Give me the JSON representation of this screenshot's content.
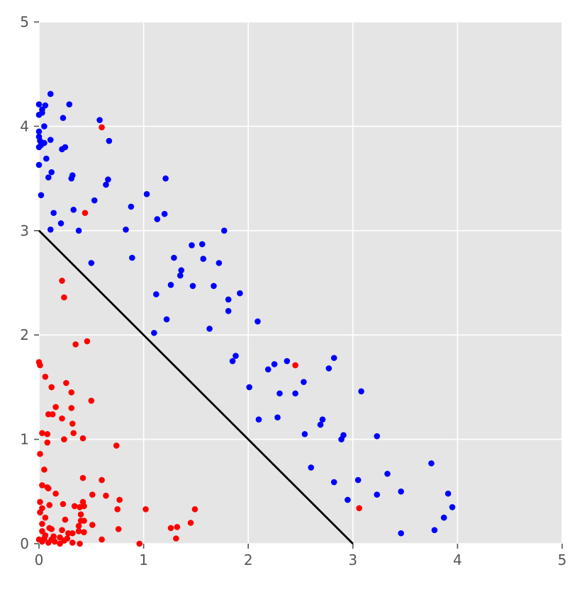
{
  "chart_data": {
    "type": "scatter",
    "title": "",
    "xlabel": "",
    "ylabel": "",
    "xlim": [
      0,
      5
    ],
    "ylim": [
      0,
      5
    ],
    "xticks": [
      "0",
      "1",
      "2",
      "3",
      "4",
      "5"
    ],
    "yticks": [
      "0",
      "1",
      "2",
      "3",
      "4",
      "5"
    ],
    "grid": true,
    "background": "#e5e5e5",
    "series": [
      {
        "color": "#0000ff",
        "points": [
          [
            0.11,
            4.31
          ],
          [
            0.29,
            4.21
          ],
          [
            0.0,
            4.21
          ],
          [
            0.06,
            4.2
          ],
          [
            0.03,
            4.16
          ],
          [
            0.03,
            4.13
          ],
          [
            0.0,
            4.11
          ],
          [
            0.23,
            4.08
          ],
          [
            0.58,
            4.06
          ],
          [
            0.05,
            4.0
          ],
          [
            0.0,
            3.95
          ],
          [
            0.0,
            3.9
          ],
          [
            0.11,
            3.87
          ],
          [
            0.67,
            3.86
          ],
          [
            0.01,
            3.86
          ],
          [
            0.05,
            3.84
          ],
          [
            0.02,
            3.82
          ],
          [
            0.0,
            3.8
          ],
          [
            0.25,
            3.8
          ],
          [
            0.22,
            3.78
          ],
          [
            0.07,
            3.69
          ],
          [
            0.0,
            3.63
          ],
          [
            0.12,
            3.56
          ],
          [
            0.09,
            3.51
          ],
          [
            0.32,
            3.53
          ],
          [
            0.31,
            3.5
          ],
          [
            0.66,
            3.49
          ],
          [
            0.64,
            3.44
          ],
          [
            1.21,
            3.5
          ],
          [
            0.02,
            3.34
          ],
          [
            1.03,
            3.35
          ],
          [
            0.53,
            3.29
          ],
          [
            0.88,
            3.23
          ],
          [
            0.33,
            3.2
          ],
          [
            0.14,
            3.17
          ],
          [
            1.2,
            3.16
          ],
          [
            1.13,
            3.11
          ],
          [
            0.21,
            3.07
          ],
          [
            0.11,
            3.01
          ],
          [
            0.38,
            3.0
          ],
          [
            0.83,
            3.01
          ],
          [
            1.77,
            3.0
          ],
          [
            1.46,
            2.86
          ],
          [
            1.56,
            2.87
          ],
          [
            1.29,
            2.74
          ],
          [
            1.57,
            2.73
          ],
          [
            0.89,
            2.74
          ],
          [
            1.72,
            2.69
          ],
          [
            0.5,
            2.69
          ],
          [
            1.36,
            2.62
          ],
          [
            1.35,
            2.57
          ],
          [
            1.26,
            2.48
          ],
          [
            1.47,
            2.47
          ],
          [
            1.67,
            2.47
          ],
          [
            1.12,
            2.39
          ],
          [
            1.92,
            2.4
          ],
          [
            1.81,
            2.34
          ],
          [
            1.81,
            2.23
          ],
          [
            1.22,
            2.15
          ],
          [
            2.09,
            2.13
          ],
          [
            1.63,
            2.06
          ],
          [
            1.1,
            2.02
          ],
          [
            2.82,
            1.78
          ],
          [
            1.88,
            1.8
          ],
          [
            1.85,
            1.75
          ],
          [
            2.37,
            1.75
          ],
          [
            2.25,
            1.72
          ],
          [
            2.19,
            1.67
          ],
          [
            2.77,
            1.68
          ],
          [
            2.53,
            1.55
          ],
          [
            2.01,
            1.5
          ],
          [
            3.08,
            1.46
          ],
          [
            2.45,
            1.44
          ],
          [
            2.3,
            1.44
          ],
          [
            2.28,
            1.21
          ],
          [
            2.1,
            1.19
          ],
          [
            2.71,
            1.19
          ],
          [
            2.69,
            1.14
          ],
          [
            2.54,
            1.05
          ],
          [
            2.91,
            1.04
          ],
          [
            3.23,
            1.03
          ],
          [
            2.89,
            1.0
          ],
          [
            3.75,
            0.77
          ],
          [
            2.6,
            0.73
          ],
          [
            3.33,
            0.67
          ],
          [
            3.05,
            0.61
          ],
          [
            2.82,
            0.59
          ],
          [
            3.46,
            0.5
          ],
          [
            3.91,
            0.48
          ],
          [
            3.23,
            0.47
          ],
          [
            2.95,
            0.42
          ],
          [
            3.95,
            0.35
          ],
          [
            3.87,
            0.25
          ],
          [
            3.78,
            0.13
          ],
          [
            3.46,
            0.1
          ]
        ]
      },
      {
        "color": "#ff0000",
        "points": [
          [
            0.6,
            3.99
          ],
          [
            0.44,
            3.17
          ],
          [
            0.22,
            2.52
          ],
          [
            0.24,
            2.36
          ],
          [
            0.46,
            1.94
          ],
          [
            0.35,
            1.91
          ],
          [
            0.0,
            1.74
          ],
          [
            0.01,
            1.71
          ],
          [
            2.45,
            1.71
          ],
          [
            0.06,
            1.6
          ],
          [
            0.26,
            1.54
          ],
          [
            0.12,
            1.5
          ],
          [
            0.31,
            1.45
          ],
          [
            0.5,
            1.37
          ],
          [
            0.16,
            1.31
          ],
          [
            0.31,
            1.3
          ],
          [
            0.09,
            1.24
          ],
          [
            0.13,
            1.24
          ],
          [
            0.22,
            1.2
          ],
          [
            0.32,
            1.15
          ],
          [
            0.03,
            1.06
          ],
          [
            0.08,
            1.05
          ],
          [
            0.33,
            1.06
          ],
          [
            0.24,
            1.0
          ],
          [
            0.42,
            1.01
          ],
          [
            0.08,
            0.97
          ],
          [
            0.74,
            0.94
          ],
          [
            0.01,
            0.86
          ],
          [
            0.05,
            0.71
          ],
          [
            0.42,
            0.63
          ],
          [
            0.6,
            0.61
          ],
          [
            0.03,
            0.56
          ],
          [
            0.09,
            0.53
          ],
          [
            0.08,
            0.54
          ],
          [
            0.16,
            0.48
          ],
          [
            0.51,
            0.47
          ],
          [
            0.64,
            0.46
          ],
          [
            0.77,
            0.42
          ],
          [
            0.01,
            0.4
          ],
          [
            0.42,
            0.4
          ],
          [
            0.23,
            0.38
          ],
          [
            0.1,
            0.37
          ],
          [
            0.34,
            0.36
          ],
          [
            0.39,
            0.35
          ],
          [
            0.43,
            0.36
          ],
          [
            0.03,
            0.34
          ],
          [
            3.06,
            0.34
          ],
          [
            0.75,
            0.33
          ],
          [
            1.02,
            0.33
          ],
          [
            1.49,
            0.33
          ],
          [
            0.01,
            0.3
          ],
          [
            0.4,
            0.28
          ],
          [
            0.06,
            0.25
          ],
          [
            0.25,
            0.23
          ],
          [
            0.4,
            0.22
          ],
          [
            0.43,
            0.22
          ],
          [
            1.45,
            0.2
          ],
          [
            0.03,
            0.19
          ],
          [
            0.51,
            0.18
          ],
          [
            0.38,
            0.17
          ],
          [
            0.1,
            0.15
          ],
          [
            0.12,
            0.14
          ],
          [
            0.22,
            0.13
          ],
          [
            1.26,
            0.15
          ],
          [
            1.32,
            0.16
          ],
          [
            0.76,
            0.14
          ],
          [
            0.03,
            0.12
          ],
          [
            0.38,
            0.12
          ],
          [
            0.43,
            0.11
          ],
          [
            0.28,
            0.1
          ],
          [
            0.32,
            0.1
          ],
          [
            0.06,
            0.08
          ],
          [
            0.14,
            0.07
          ],
          [
            0.2,
            0.06
          ],
          [
            0.27,
            0.05
          ],
          [
            1.31,
            0.05
          ],
          [
            0.0,
            0.04
          ],
          [
            0.12,
            0.04
          ],
          [
            0.24,
            0.03
          ],
          [
            0.6,
            0.04
          ],
          [
            0.03,
            0.02
          ],
          [
            0.09,
            0.01
          ],
          [
            0.2,
            0.0
          ],
          [
            0.32,
            0.01
          ],
          [
            0.39,
            0.0
          ],
          [
            0.96,
            0.0
          ],
          [
            0.05,
            0.05
          ],
          [
            0.15,
            0.02
          ]
        ]
      }
    ],
    "line": {
      "color": "#000000",
      "x": [
        0,
        3
      ],
      "y": [
        3,
        0
      ]
    }
  }
}
